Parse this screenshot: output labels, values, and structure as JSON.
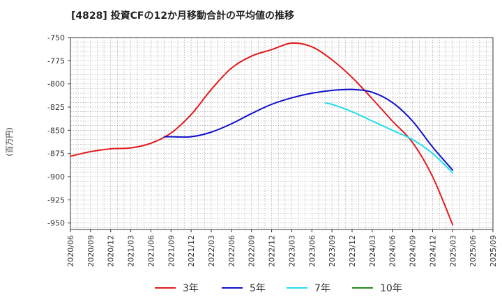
{
  "chart_data": {
    "type": "line",
    "title": "[4828]  投資CFの12か月移動合計の平均値の推移",
    "ylabel": "(百万円)",
    "xlabel": "",
    "ylim": [
      -957,
      -750
    ],
    "yticks": [
      -750,
      -775,
      -800,
      -825,
      -850,
      -875,
      -900,
      -925,
      -950
    ],
    "xlim": [
      "2020/06",
      "2025/09"
    ],
    "xticks": [
      "2020/06",
      "2020/09",
      "2020/12",
      "2021/03",
      "2021/06",
      "2021/09",
      "2021/12",
      "2022/03",
      "2022/06",
      "2022/09",
      "2022/12",
      "2023/03",
      "2023/06",
      "2023/09",
      "2023/12",
      "2024/03",
      "2024/06",
      "2024/09",
      "2024/12",
      "2025/03",
      "2025/06",
      "2025/09"
    ],
    "grid": true,
    "legend_position": "bottom",
    "series": [
      {
        "name": "3年",
        "color": "#e31a1c",
        "points": [
          [
            "2020/06",
            -878
          ],
          [
            "2020/09",
            -873
          ],
          [
            "2020/12",
            -870
          ],
          [
            "2021/03",
            -869
          ],
          [
            "2021/06",
            -864
          ],
          [
            "2021/09",
            -853
          ],
          [
            "2021/12",
            -833
          ],
          [
            "2022/03",
            -806
          ],
          [
            "2022/06",
            -783
          ],
          [
            "2022/09",
            -770
          ],
          [
            "2022/12",
            -763
          ],
          [
            "2023/03",
            -756
          ],
          [
            "2023/06",
            -760
          ],
          [
            "2023/09",
            -774
          ],
          [
            "2023/12",
            -793
          ],
          [
            "2024/03",
            -816
          ],
          [
            "2024/06",
            -840
          ],
          [
            "2024/09",
            -863
          ],
          [
            "2024/12",
            -900
          ],
          [
            "2025/03",
            -952
          ]
        ]
      },
      {
        "name": "5年",
        "color": "#1010cc",
        "points": [
          [
            "2021/08",
            -857
          ],
          [
            "2021/09",
            -857
          ],
          [
            "2021/12",
            -857
          ],
          [
            "2022/03",
            -852
          ],
          [
            "2022/06",
            -843
          ],
          [
            "2022/09",
            -832
          ],
          [
            "2022/12",
            -822
          ],
          [
            "2023/03",
            -815
          ],
          [
            "2023/06",
            -810
          ],
          [
            "2023/09",
            -807
          ],
          [
            "2023/12",
            -806
          ],
          [
            "2024/03",
            -809
          ],
          [
            "2024/06",
            -820
          ],
          [
            "2024/09",
            -840
          ],
          [
            "2024/12",
            -868
          ],
          [
            "2025/03",
            -893
          ]
        ]
      },
      {
        "name": "7年",
        "color": "#22e0ee",
        "points": [
          [
            "2023/08",
            -821
          ],
          [
            "2023/09",
            -822
          ],
          [
            "2023/12",
            -830
          ],
          [
            "2024/03",
            -840
          ],
          [
            "2024/06",
            -850
          ],
          [
            "2024/09",
            -860
          ],
          [
            "2024/12",
            -875
          ],
          [
            "2025/03",
            -896
          ]
        ]
      },
      {
        "name": "10年",
        "color": "#228b22",
        "points": []
      }
    ]
  }
}
